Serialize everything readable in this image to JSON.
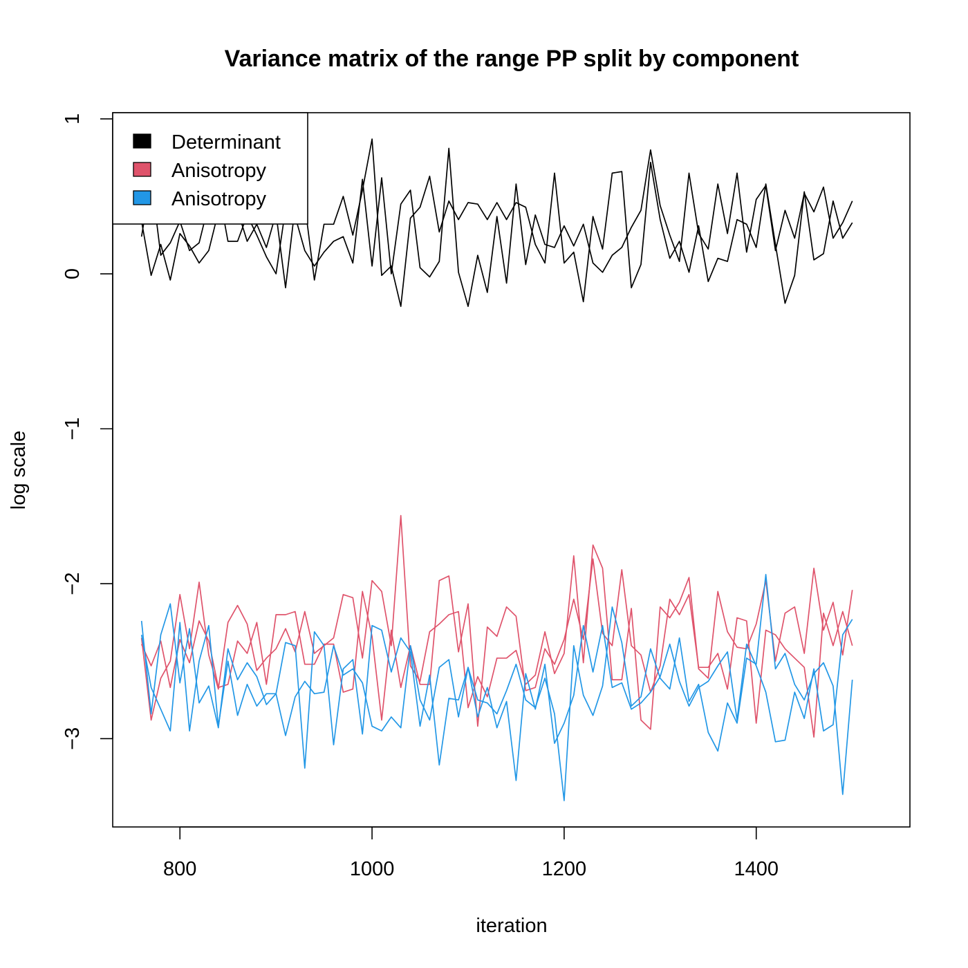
{
  "chart_data": {
    "type": "line",
    "title": "Variance matrix of the range PP split by component",
    "xlabel": "iteration",
    "ylabel": "log scale",
    "xlim": [
      730,
      1560
    ],
    "ylim": [
      -3.57,
      1.04
    ],
    "xticks": [
      800,
      1000,
      1200,
      1400
    ],
    "yticks": [
      -3,
      -2,
      -1,
      0,
      1
    ],
    "x_tick_labels": [
      "800",
      "1000",
      "1200",
      "1400"
    ],
    "y_tick_labels": [
      "−3",
      "−2",
      "−1",
      "0",
      "1"
    ],
    "grid": false,
    "legend_position": "top-left",
    "legend": [
      {
        "label": "Determinant",
        "color": "#000000"
      },
      {
        "label": "Anisotropy",
        "color": "#DF536B"
      },
      {
        "label": "Anisotropy",
        "color": "#2297E6"
      }
    ],
    "x": [
      760,
      770,
      780,
      790,
      800,
      810,
      820,
      830,
      840,
      850,
      860,
      870,
      880,
      890,
      900,
      910,
      920,
      930,
      940,
      950,
      960,
      970,
      980,
      990,
      1000,
      1010,
      1020,
      1030,
      1040,
      1050,
      1060,
      1070,
      1080,
      1090,
      1100,
      1110,
      1120,
      1130,
      1140,
      1150,
      1160,
      1170,
      1180,
      1190,
      1200,
      1210,
      1220,
      1230,
      1240,
      1250,
      1260,
      1270,
      1280,
      1290,
      1300,
      1310,
      1320,
      1330,
      1340,
      1350,
      1360,
      1370,
      1380,
      1390,
      1400,
      1410,
      1420,
      1430,
      1440,
      1450,
      1460,
      1470,
      1480,
      1490,
      1500
    ],
    "series": [
      {
        "group": 0,
        "color": "#000000",
        "values": [
          0.24,
          0.62,
          0.12,
          0.2,
          0.34,
          0.15,
          0.2,
          0.45,
          0.55,
          0.21,
          0.21,
          0.38,
          0.25,
          0.11,
          0.0,
          0.42,
          0.37,
          0.15,
          0.05,
          0.14,
          0.21,
          0.24,
          0.07,
          0.61,
          0.05,
          0.62,
          0.0,
          0.45,
          0.54,
          0.04,
          -0.02,
          0.08,
          0.81,
          0.01,
          -0.21,
          0.12,
          -0.12,
          0.37,
          -0.06,
          0.58,
          0.06,
          0.38,
          0.19,
          0.17,
          0.31,
          0.18,
          0.32,
          0.07,
          0.01,
          0.12,
          0.17,
          0.3,
          0.41,
          0.8,
          0.44,
          0.25,
          0.08,
          0.65,
          0.26,
          0.16,
          0.58,
          0.26,
          0.65,
          0.14,
          0.48,
          0.57,
          0.15,
          0.41,
          0.23,
          0.52,
          0.4,
          0.56,
          0.23,
          0.33,
          0.47
        ]
      },
      {
        "group": 0,
        "color": "#000000",
        "values": [
          0.34,
          -0.01,
          0.19,
          -0.04,
          0.26,
          0.18,
          0.07,
          0.15,
          0.4,
          0.43,
          0.41,
          0.21,
          0.32,
          0.17,
          0.39,
          -0.09,
          0.44,
          0.45,
          -0.04,
          0.32,
          0.32,
          0.5,
          0.25,
          0.54,
          0.87,
          -0.01,
          0.05,
          -0.21,
          0.36,
          0.43,
          0.63,
          0.27,
          0.47,
          0.35,
          0.46,
          0.45,
          0.35,
          0.46,
          0.35,
          0.46,
          0.43,
          0.19,
          0.07,
          0.65,
          0.07,
          0.14,
          -0.18,
          0.37,
          0.16,
          0.65,
          0.66,
          -0.09,
          0.06,
          0.72,
          0.35,
          0.1,
          0.21,
          0.01,
          0.31,
          -0.05,
          0.1,
          0.08,
          0.35,
          0.32,
          0.17,
          0.58,
          0.19,
          -0.19,
          -0.01,
          0.53,
          0.09,
          0.13,
          0.47,
          0.23,
          0.33
        ]
      },
      {
        "group": 1,
        "color": "#DF536B",
        "values": [
          -2.35,
          -2.88,
          -2.61,
          -2.5,
          -2.07,
          -2.42,
          -1.99,
          -2.46,
          -2.68,
          -2.25,
          -2.14,
          -2.26,
          -2.56,
          -2.48,
          -2.42,
          -2.29,
          -2.44,
          -2.18,
          -2.45,
          -2.4,
          -2.35,
          -2.07,
          -2.09,
          -2.48,
          -1.98,
          -2.05,
          -2.4,
          -1.56,
          -2.53,
          -2.63,
          -2.31,
          -2.26,
          -2.2,
          -2.18,
          -2.8,
          -2.6,
          -2.73,
          -2.48,
          -2.48,
          -2.43,
          -2.65,
          -2.59,
          -2.31,
          -2.58,
          -2.45,
          -1.82,
          -2.51,
          -1.75,
          -1.9,
          -2.62,
          -2.62,
          -2.16,
          -2.88,
          -2.94,
          -2.15,
          -2.22,
          -2.12,
          -1.96,
          -2.55,
          -2.61,
          -2.05,
          -2.31,
          -2.41,
          -2.42,
          -2.26,
          -1.98,
          -2.5,
          -2.19,
          -2.15,
          -2.45,
          -1.9,
          -2.3,
          -2.12,
          -2.46,
          -2.04
        ]
      },
      {
        "group": 1,
        "color": "#DF536B",
        "values": [
          -2.39,
          -2.53,
          -2.37,
          -2.67,
          -2.36,
          -2.51,
          -2.24,
          -2.37,
          -2.67,
          -2.65,
          -2.37,
          -2.45,
          -2.25,
          -2.65,
          -2.2,
          -2.2,
          -2.18,
          -2.52,
          -2.52,
          -2.39,
          -2.39,
          -2.7,
          -2.68,
          -2.05,
          -2.34,
          -2.88,
          -2.3,
          -2.67,
          -2.4,
          -2.65,
          -2.65,
          -1.98,
          -1.95,
          -2.44,
          -2.13,
          -2.92,
          -2.28,
          -2.34,
          -2.15,
          -2.21,
          -2.69,
          -2.67,
          -2.42,
          -2.52,
          -2.36,
          -2.1,
          -2.36,
          -1.84,
          -2.32,
          -2.4,
          -1.91,
          -2.4,
          -2.46,
          -2.7,
          -2.53,
          -2.1,
          -2.2,
          -2.07,
          -2.54,
          -2.54,
          -2.45,
          -2.68,
          -2.22,
          -2.24,
          -2.9,
          -2.3,
          -2.33,
          -2.42,
          -2.48,
          -2.54,
          -2.99,
          -2.19,
          -2.4,
          -2.18,
          -2.4
        ]
      },
      {
        "group": 2,
        "color": "#2297E6",
        "values": [
          -2.24,
          -2.84,
          -2.33,
          -2.13,
          -2.64,
          -2.29,
          -2.77,
          -2.66,
          -2.93,
          -2.42,
          -2.62,
          -2.51,
          -2.6,
          -2.78,
          -2.71,
          -2.38,
          -2.4,
          -3.19,
          -2.31,
          -2.4,
          -3.04,
          -2.55,
          -2.49,
          -2.97,
          -2.27,
          -2.3,
          -2.57,
          -2.35,
          -2.44,
          -2.92,
          -2.59,
          -3.17,
          -2.74,
          -2.75,
          -2.54,
          -2.86,
          -2.67,
          -2.93,
          -2.76,
          -3.27,
          -2.58,
          -2.81,
          -2.52,
          -3.03,
          -2.9,
          -2.72,
          -2.27,
          -2.57,
          -2.27,
          -2.67,
          -2.64,
          -2.81,
          -2.77,
          -2.7,
          -2.6,
          -2.39,
          -2.63,
          -2.79,
          -2.67,
          -2.63,
          -2.53,
          -2.44,
          -2.88,
          -2.39,
          -2.53,
          -2.7,
          -3.02,
          -3.01,
          -2.7,
          -2.87,
          -2.55,
          -2.95,
          -2.91,
          -2.33,
          -2.23
        ]
      },
      {
        "group": 2,
        "color": "#2297E6",
        "values": [
          -2.33,
          -2.67,
          -2.81,
          -2.95,
          -2.25,
          -2.95,
          -2.5,
          -2.27,
          -2.92,
          -2.5,
          -2.85,
          -2.65,
          -2.79,
          -2.71,
          -2.71,
          -2.98,
          -2.73,
          -2.63,
          -2.71,
          -2.7,
          -2.4,
          -2.59,
          -2.55,
          -2.64,
          -2.92,
          -2.95,
          -2.86,
          -2.93,
          -2.4,
          -2.75,
          -2.88,
          -2.54,
          -2.49,
          -2.86,
          -2.54,
          -2.75,
          -2.77,
          -2.84,
          -2.69,
          -2.52,
          -2.75,
          -2.8,
          -2.61,
          -2.84,
          -3.4,
          -2.4,
          -2.72,
          -2.85,
          -2.66,
          -2.15,
          -2.38,
          -2.79,
          -2.73,
          -2.42,
          -2.61,
          -2.68,
          -2.35,
          -2.76,
          -2.65,
          -2.96,
          -3.08,
          -2.77,
          -2.9,
          -2.48,
          -2.52,
          -1.94,
          -2.55,
          -2.45,
          -2.65,
          -2.75,
          -2.58,
          -2.51,
          -2.66,
          -3.36,
          -2.62
        ]
      }
    ]
  }
}
